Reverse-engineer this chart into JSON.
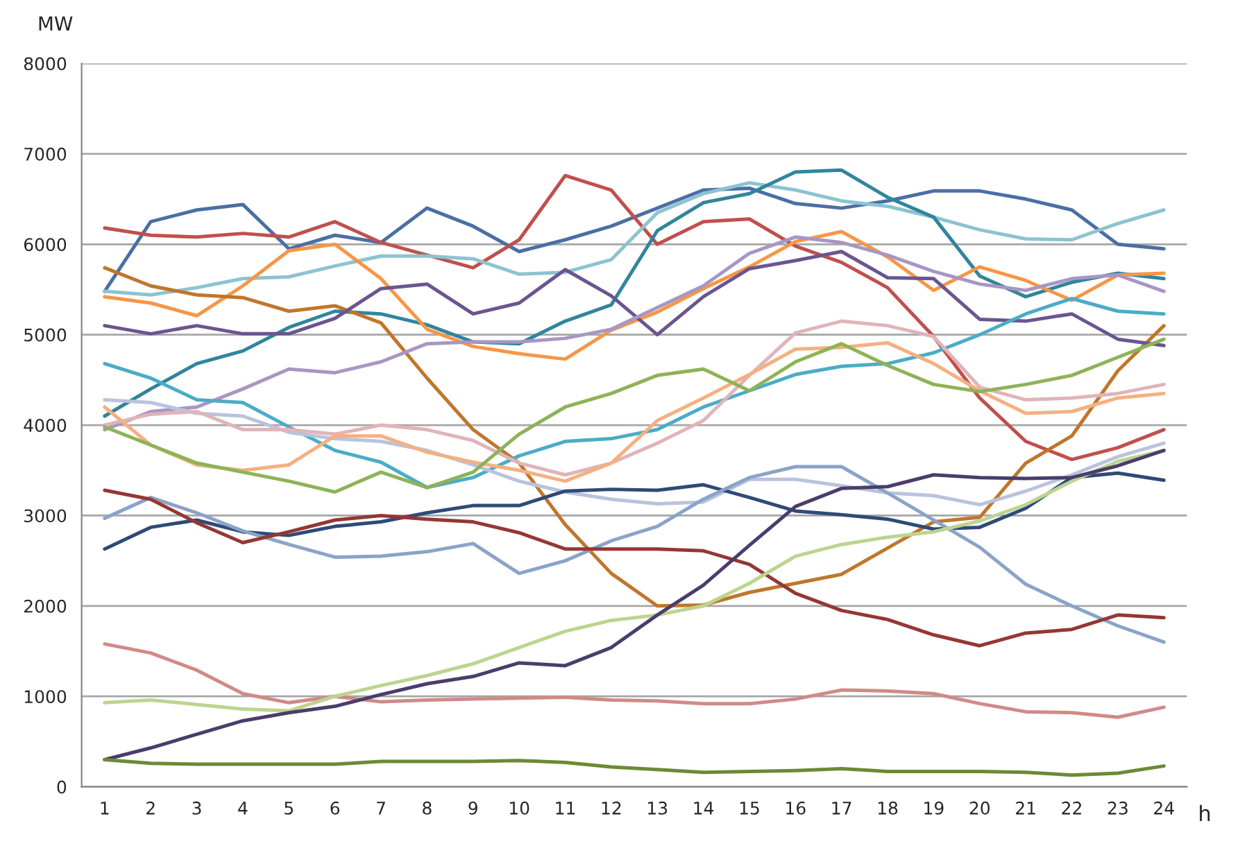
{
  "chart_data": {
    "type": "line",
    "xlabel": "h",
    "ylabel": "MW",
    "categories": [
      "1",
      "2",
      "3",
      "4",
      "5",
      "6",
      "7",
      "8",
      "9",
      "10",
      "11",
      "12",
      "13",
      "14",
      "15",
      "16",
      "17",
      "18",
      "19",
      "20",
      "21",
      "22",
      "23",
      "24"
    ],
    "ylim": [
      0,
      8000
    ],
    "yticks": [
      0,
      1000,
      2000,
      3000,
      4000,
      5000,
      6000,
      7000,
      8000
    ],
    "grid": "y",
    "marker": "none",
    "line_style": "solid",
    "series": [
      {
        "color": "#4a6fa5",
        "values": [
          5480,
          6250,
          6380,
          6440,
          5950,
          6100,
          6020,
          6400,
          6200,
          5920,
          6050,
          6200,
          6400,
          6600,
          6620,
          6450,
          6400,
          6480,
          6590,
          6590,
          6500,
          6380,
          6000,
          5950
        ]
      },
      {
        "color": "#c0504d",
        "values": [
          6180,
          6100,
          6080,
          6120,
          6080,
          6250,
          6020,
          5880,
          5740,
          6050,
          6760,
          6600,
          6000,
          6250,
          6280,
          5980,
          5800,
          5520,
          4980,
          4300,
          3820,
          3620,
          3750,
          3950
        ]
      },
      {
        "color": "#8cc3d1",
        "values": [
          5480,
          5440,
          5520,
          5620,
          5640,
          5760,
          5870,
          5870,
          5840,
          5670,
          5690,
          5830,
          6350,
          6560,
          6680,
          6600,
          6480,
          6420,
          6300,
          6160,
          6060,
          6050,
          6230,
          6380
        ]
      },
      {
        "color": "#31859c",
        "values": [
          4100,
          4400,
          4680,
          4820,
          5080,
          5260,
          5230,
          5110,
          4920,
          4900,
          5150,
          5330,
          6150,
          6460,
          6560,
          6800,
          6820,
          6520,
          6300,
          5650,
          5420,
          5580,
          5680,
          5620
        ]
      },
      {
        "color": "#f79646",
        "values": [
          5420,
          5350,
          5210,
          5540,
          5930,
          6000,
          5620,
          5060,
          4870,
          4790,
          4730,
          5050,
          5250,
          5510,
          5750,
          6030,
          6140,
          5860,
          5490,
          5750,
          5600,
          5380,
          5660,
          5680
        ]
      },
      {
        "color": "#c0762a",
        "values": [
          5740,
          5540,
          5440,
          5410,
          5260,
          5320,
          5130,
          4520,
          3950,
          3580,
          2900,
          2360,
          2000,
          2010,
          2150,
          2250,
          2350,
          2640,
          2930,
          2980,
          3580,
          3880,
          4600,
          5100
        ]
      },
      {
        "color": "#6a5590",
        "values": [
          5100,
          5010,
          5100,
          5010,
          5010,
          5180,
          5510,
          5560,
          5230,
          5350,
          5720,
          5430,
          5000,
          5420,
          5730,
          5820,
          5920,
          5630,
          5620,
          5170,
          5150,
          5230,
          4950,
          4880
        ]
      },
      {
        "color": "#a896c4",
        "values": [
          3950,
          4150,
          4200,
          4400,
          4620,
          4580,
          4700,
          4900,
          4920,
          4920,
          4960,
          5060,
          5300,
          5540,
          5900,
          6080,
          6020,
          5880,
          5700,
          5560,
          5490,
          5620,
          5660,
          5480
        ]
      },
      {
        "color": "#4bacc6",
        "values": [
          4680,
          4520,
          4280,
          4250,
          3980,
          3720,
          3590,
          3310,
          3420,
          3660,
          3820,
          3850,
          3950,
          4200,
          4380,
          4560,
          4650,
          4680,
          4800,
          5000,
          5230,
          5400,
          5260,
          5230
        ]
      },
      {
        "color": "#b9c3dc",
        "values": [
          4280,
          4250,
          4130,
          4100,
          3920,
          3850,
          3820,
          3720,
          3560,
          3380,
          3260,
          3180,
          3130,
          3150,
          3400,
          3400,
          3330,
          3250,
          3220,
          3120,
          3270,
          3450,
          3650,
          3800
        ]
      },
      {
        "color": "#e0b4b8",
        "values": [
          4000,
          4120,
          4150,
          3950,
          3950,
          3900,
          4000,
          3950,
          3830,
          3580,
          3450,
          3580,
          3800,
          4050,
          4550,
          5020,
          5150,
          5100,
          4980,
          4420,
          4280,
          4300,
          4350,
          4450
        ]
      },
      {
        "color": "#f5b080",
        "values": [
          4200,
          3780,
          3560,
          3500,
          3560,
          3880,
          3880,
          3700,
          3590,
          3500,
          3380,
          3580,
          4050,
          4300,
          4560,
          4840,
          4860,
          4910,
          4680,
          4380,
          4130,
          4150,
          4300,
          4350
        ]
      },
      {
        "color": "#8db356",
        "values": [
          3980,
          3780,
          3580,
          3480,
          3380,
          3260,
          3480,
          3310,
          3480,
          3900,
          4200,
          4350,
          4550,
          4620,
          4380,
          4700,
          4900,
          4660,
          4450,
          4370,
          4450,
          4550,
          4750,
          4950
        ]
      },
      {
        "color": "#2e4a78",
        "values": [
          2630,
          2870,
          2950,
          2820,
          2780,
          2880,
          2930,
          3030,
          3110,
          3110,
          3270,
          3290,
          3280,
          3340,
          3200,
          3050,
          3010,
          2960,
          2850,
          2870,
          3080,
          3420,
          3470,
          3390
        ]
      },
      {
        "color": "#8aa3c8",
        "values": [
          2970,
          3200,
          3030,
          2830,
          2680,
          2540,
          2550,
          2600,
          2690,
          2360,
          2500,
          2720,
          2880,
          3180,
          3420,
          3540,
          3540,
          3250,
          2950,
          2650,
          2240,
          2000,
          1780,
          1600
        ]
      },
      {
        "color": "#953735",
        "values": [
          3280,
          3180,
          2920,
          2700,
          2820,
          2950,
          3000,
          2960,
          2930,
          2810,
          2630,
          2630,
          2630,
          2610,
          2460,
          2140,
          1950,
          1850,
          1680,
          1560,
          1700,
          1740,
          1900,
          1870
        ]
      },
      {
        "color": "#d08a88",
        "values": [
          1580,
          1480,
          1290,
          1030,
          930,
          1000,
          940,
          960,
          970,
          980,
          990,
          960,
          950,
          920,
          920,
          970,
          1070,
          1060,
          1030,
          920,
          830,
          820,
          770,
          880
        ]
      },
      {
        "color": "#bcd48f",
        "values": [
          930,
          960,
          910,
          860,
          840,
          1000,
          1120,
          1230,
          1360,
          1540,
          1720,
          1840,
          1900,
          2000,
          2250,
          2550,
          2680,
          2760,
          2820,
          2940,
          3120,
          3380,
          3600,
          3720
        ]
      },
      {
        "color": "#4a3d6b",
        "values": [
          300,
          430,
          580,
          730,
          820,
          890,
          1020,
          1140,
          1220,
          1370,
          1340,
          1540,
          1900,
          2230,
          2670,
          3100,
          3300,
          3320,
          3450,
          3420,
          3410,
          3420,
          3550,
          3720
        ]
      },
      {
        "color": "#6b8a35",
        "values": [
          300,
          260,
          250,
          250,
          250,
          250,
          280,
          280,
          280,
          290,
          270,
          220,
          190,
          160,
          170,
          180,
          200,
          170,
          170,
          170,
          160,
          130,
          150,
          230
        ]
      }
    ]
  }
}
